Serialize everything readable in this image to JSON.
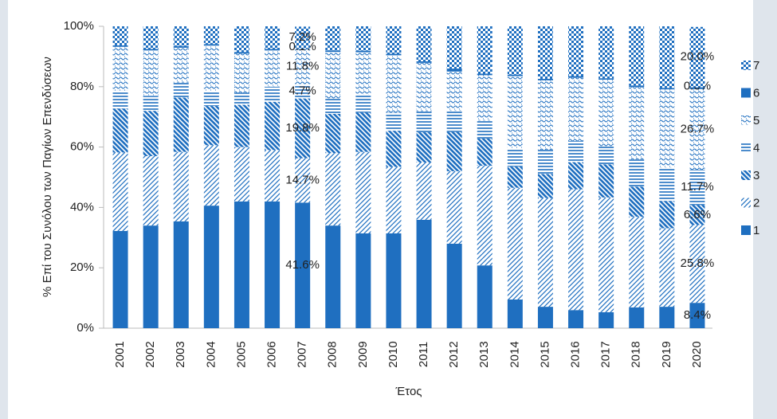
{
  "chart_data": {
    "type": "bar",
    "stacked": true,
    "y_label": "% Επί του Συνόλου των Παγίων Επενδύσεων",
    "x_label": "Έτος",
    "categories": [
      "2001",
      "2002",
      "2003",
      "2004",
      "2005",
      "2006",
      "2007",
      "2008",
      "2009",
      "2010",
      "2011",
      "2012",
      "2013",
      "2014",
      "2015",
      "2016",
      "2017",
      "2018",
      "2019",
      "2020"
    ],
    "ylim": [
      0,
      100
    ],
    "yticks": [
      {
        "value": 0,
        "label": "0%"
      },
      {
        "value": 20,
        "label": "20%"
      },
      {
        "value": 40,
        "label": "40%"
      },
      {
        "value": 60,
        "label": "60%"
      },
      {
        "value": 80,
        "label": "80%"
      },
      {
        "value": 100,
        "label": "100%"
      }
    ],
    "legend": "right",
    "series": [
      {
        "name": "1",
        "color": "#1f6fc0",
        "pattern": "solid",
        "values": [
          32.2,
          34,
          35.4,
          40.6,
          42,
          42,
          41.6,
          34,
          31.4,
          31.4,
          35.9,
          28,
          20.8,
          9.5,
          7.1,
          6,
          5.3,
          6.9,
          7.1,
          8.4
        ],
        "value_labels": [
          null,
          null,
          null,
          null,
          null,
          null,
          "41.6%",
          null,
          null,
          null,
          null,
          null,
          null,
          null,
          null,
          null,
          null,
          null,
          null,
          "8.4%"
        ]
      },
      {
        "name": "2",
        "color": "#1f6fc0",
        "pattern": "diag",
        "values": [
          26,
          23,
          23,
          20,
          18,
          17,
          14.7,
          24,
          27,
          22,
          19,
          24,
          33,
          37,
          36,
          40,
          38,
          30,
          26,
          25.8
        ],
        "value_labels": [
          null,
          null,
          null,
          null,
          null,
          null,
          "14.7%",
          null,
          null,
          null,
          null,
          null,
          null,
          null,
          null,
          null,
          null,
          null,
          null,
          "25.8%"
        ]
      },
      {
        "name": "3",
        "color": "#1f6fc0",
        "pattern": "bdiag",
        "values": [
          14.5,
          15,
          18,
          13,
          14,
          16,
          19.8,
          13,
          13,
          12,
          10,
          13,
          9,
          7,
          8,
          9,
          11,
          10,
          9,
          6.6
        ],
        "value_labels": [
          null,
          null,
          null,
          null,
          null,
          null,
          "19.8%",
          null,
          null,
          null,
          null,
          null,
          null,
          null,
          null,
          null,
          null,
          null,
          null,
          "6.6%"
        ]
      },
      {
        "name": "4",
        "color": "#1f6fc0",
        "pattern": "hlines",
        "values": [
          6,
          5,
          5,
          5,
          4,
          5,
          4.7,
          5,
          6,
          6,
          7,
          7,
          6,
          6,
          8,
          7,
          6,
          9,
          11,
          11.7
        ],
        "value_labels": [
          null,
          null,
          null,
          null,
          null,
          null,
          "4.7%",
          null,
          null,
          null,
          null,
          null,
          null,
          null,
          null,
          null,
          null,
          null,
          null,
          "11.7%"
        ]
      },
      {
        "name": "5",
        "color": "#1f6fc0",
        "pattern": "dots",
        "values": [
          14.5,
          15,
          11.5,
          15,
          13,
          12,
          11.8,
          15.5,
          14,
          19,
          16,
          13,
          15,
          24,
          23,
          21,
          22,
          24,
          26,
          26.7
        ],
        "value_labels": [
          null,
          null,
          null,
          null,
          null,
          null,
          "11.8%",
          null,
          null,
          null,
          null,
          null,
          null,
          null,
          null,
          null,
          null,
          null,
          null,
          "26.7%"
        ]
      },
      {
        "name": "6",
        "color": "#1f6fc0",
        "pattern": "solid",
        "values": [
          0.5,
          0.5,
          0.5,
          0.5,
          0.5,
          0.5,
          0.1,
          0.5,
          0.5,
          0.5,
          0.5,
          1,
          0.5,
          0.5,
          0.5,
          0.5,
          0.5,
          0.5,
          0.5,
          0.6
        ],
        "value_labels": [
          null,
          null,
          null,
          null,
          null,
          null,
          "0.1%",
          null,
          null,
          null,
          null,
          null,
          null,
          null,
          null,
          null,
          null,
          null,
          null,
          "0.6%"
        ]
      },
      {
        "name": "7",
        "color": "#1f6fc0",
        "pattern": "checker",
        "values": [
          6.3,
          7.5,
          6.6,
          5.9,
          8.5,
          7.5,
          7.2,
          8,
          8.1,
          9.1,
          11.6,
          14,
          15.7,
          16,
          17.4,
          16.5,
          17.2,
          19.6,
          20.4,
          20.0
        ],
        "value_labels": [
          null,
          null,
          null,
          null,
          null,
          null,
          "7.2%",
          null,
          null,
          null,
          null,
          null,
          null,
          null,
          null,
          null,
          null,
          null,
          null,
          "20.0%"
        ]
      }
    ]
  }
}
